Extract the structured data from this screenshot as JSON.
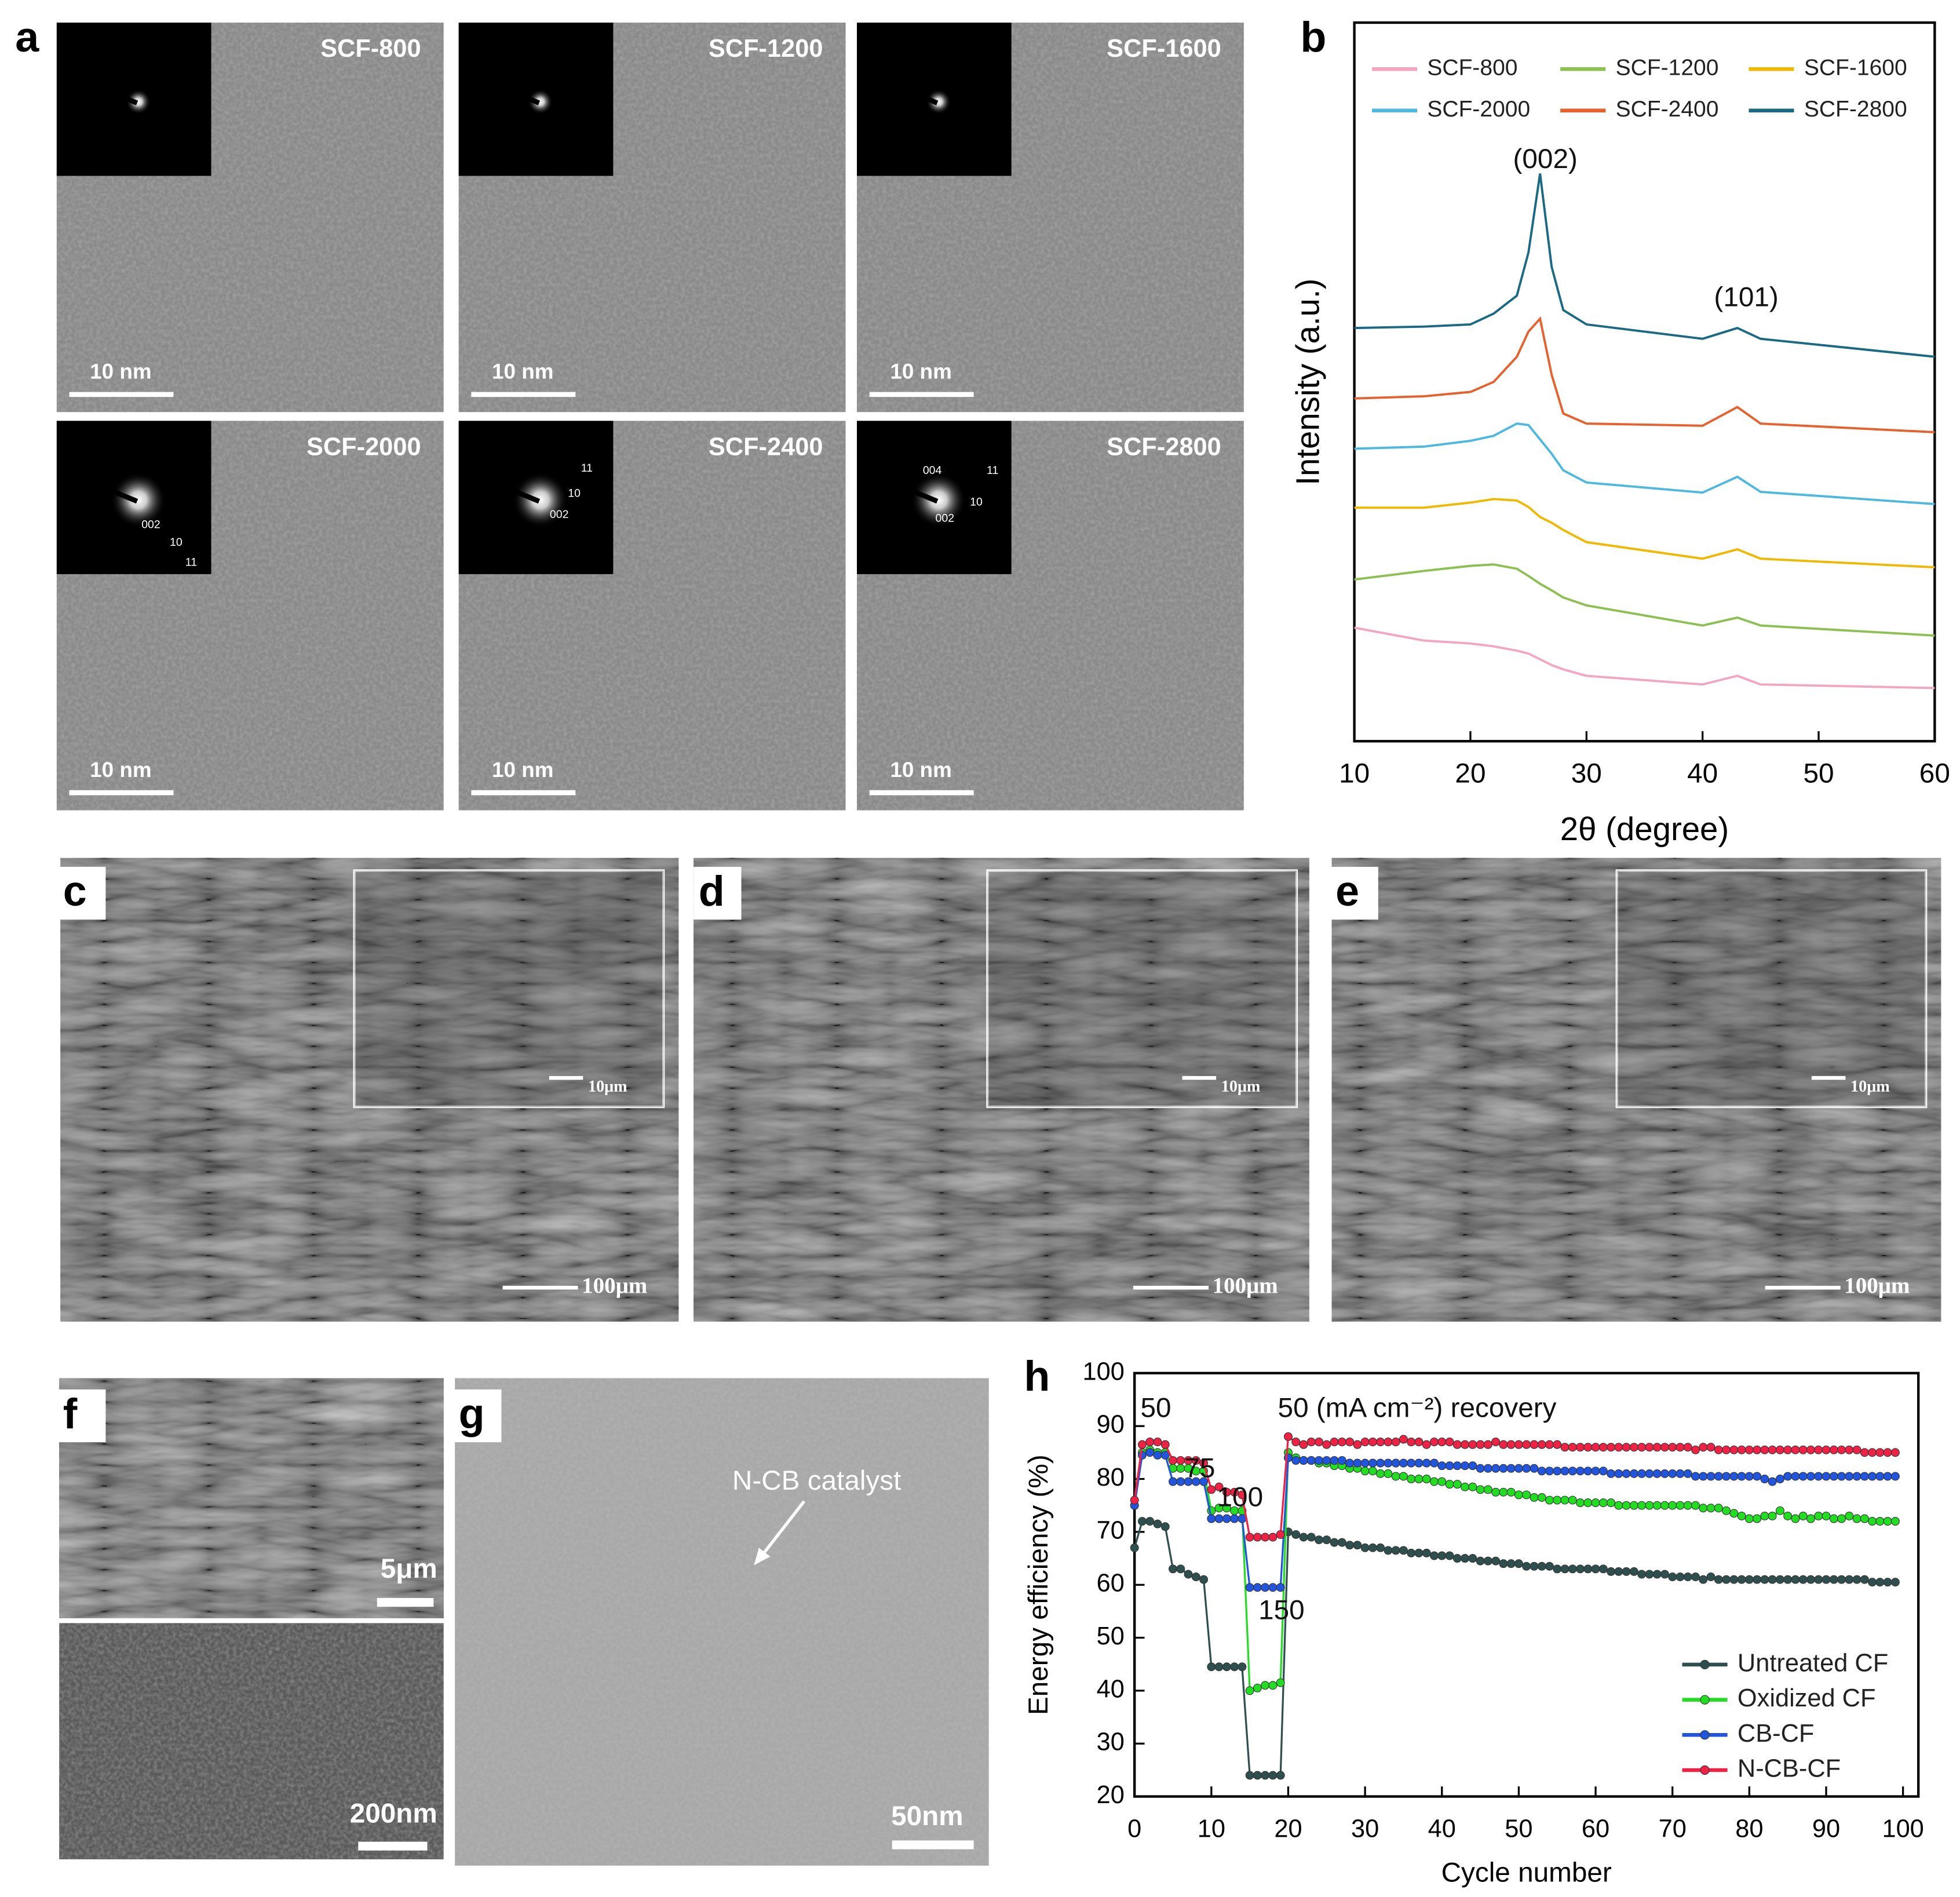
{
  "panel_labels": [
    "a",
    "b",
    "c",
    "d",
    "e",
    "f",
    "g",
    "h"
  ],
  "tem": [
    {
      "label": "SCF-800",
      "scale": "10 nm",
      "saed": []
    },
    {
      "label": "SCF-1200",
      "scale": "10 nm",
      "saed": []
    },
    {
      "label": "SCF-1600",
      "scale": "10 nm",
      "saed": []
    },
    {
      "label": "SCF-2000",
      "scale": "10 nm",
      "saed": [
        "002",
        "10",
        "11"
      ]
    },
    {
      "label": "SCF-2400",
      "scale": "10 nm",
      "saed": [
        "11",
        "10",
        "002"
      ]
    },
    {
      "label": "SCF-2800",
      "scale": "10 nm",
      "saed": [
        "004",
        "11",
        "10",
        "002"
      ]
    }
  ],
  "sem": [
    {
      "scale": "100μm",
      "inset_scale": "10μm"
    },
    {
      "scale": "100μm",
      "inset_scale": "10μm"
    },
    {
      "scale": "100μm",
      "inset_scale": "10μm"
    }
  ],
  "f": {
    "top_scale": "5μm",
    "bottom_scale": "200nm"
  },
  "g": {
    "annotation": "N-CB catalyst",
    "scale": "50nm"
  },
  "chart_data": [
    {
      "type": "line",
      "xlabel": "2θ (degree)",
      "ylabel": "Intensity (a.u.)",
      "annotations": [
        "(002)",
        "(101)"
      ],
      "legend": "top",
      "x": [
        10,
        16,
        20,
        22,
        24,
        25,
        26,
        27,
        28,
        30,
        40,
        43,
        45,
        60
      ],
      "xlim": [
        10,
        60
      ],
      "xticks": [
        10,
        20,
        30,
        40,
        50,
        60
      ],
      "ylim": [
        0,
        100
      ],
      "series": [
        {
          "name": "SCF-800",
          "color": "#f4a6c0",
          "values": [
            15.8,
            14,
            13.6,
            13.2,
            12.6,
            12.2,
            11.4,
            10.6,
            10,
            9.1,
            7.9,
            9.1,
            7.9,
            7.4
          ]
        },
        {
          "name": "SCF-1200",
          "color": "#8cc152",
          "values": [
            22.5,
            23.7,
            24.4,
            24.6,
            24,
            23,
            21.9,
            21,
            20,
            18.9,
            16.1,
            17.2,
            16.1,
            14.7
          ]
        },
        {
          "name": "SCF-1600",
          "color": "#f0b800",
          "values": [
            32.5,
            32.5,
            33.2,
            33.7,
            33.5,
            32.6,
            31.2,
            30.4,
            29.4,
            27.7,
            25.4,
            26.7,
            25.4,
            24.2
          ]
        },
        {
          "name": "SCF-2000",
          "color": "#4db8e0",
          "values": [
            40.7,
            41,
            41.8,
            42.5,
            44.2,
            44,
            42,
            40,
            37.7,
            36,
            34.6,
            36.8,
            34.7,
            33
          ]
        },
        {
          "name": "SCF-2400",
          "color": "#e8602c",
          "values": [
            47.7,
            48,
            48.6,
            50,
            53.5,
            57,
            58.8,
            51,
            45.6,
            44.2,
            43.9,
            46.5,
            44.2,
            43
          ]
        },
        {
          "name": "SCF-2800",
          "color": "#1a6a85",
          "values": [
            57.5,
            57.7,
            58,
            59.5,
            62,
            68,
            79,
            66,
            60,
            58,
            56,
            57.5,
            56,
            53.5
          ]
        }
      ]
    },
    {
      "type": "line",
      "xlabel": "Cycle number",
      "ylabel": "Energy efficiency (%)",
      "annotations": [
        "50",
        "75",
        "100",
        "150",
        "50 (mA cm⁻²) recovery"
      ],
      "legend": "lower right",
      "marker": true,
      "x": [
        0,
        1,
        2,
        3,
        4,
        5,
        6,
        7,
        8,
        9,
        10,
        11,
        12,
        13,
        14,
        15,
        16,
        17,
        18,
        19,
        20,
        21,
        22,
        23,
        24,
        25,
        26,
        27,
        28,
        29,
        30,
        31,
        32,
        33,
        34,
        35,
        36,
        37,
        38,
        39,
        40,
        41,
        42,
        43,
        44,
        45,
        46,
        47,
        48,
        49,
        50,
        51,
        52,
        53,
        54,
        55,
        56,
        57,
        58,
        59,
        60,
        61,
        62,
        63,
        64,
        65,
        66,
        67,
        68,
        69,
        70,
        71,
        72,
        73,
        74,
        75,
        76,
        77,
        78,
        79,
        80,
        81,
        82,
        83,
        84,
        85,
        86,
        87,
        88,
        89,
        90,
        91,
        92,
        93,
        94,
        95,
        96,
        97,
        98,
        99
      ],
      "xlim": [
        0,
        102
      ],
      "xticks": [
        0,
        10,
        20,
        30,
        40,
        50,
        60,
        70,
        80,
        90,
        100
      ],
      "ylim": [
        20,
        100
      ],
      "yticks": [
        20,
        30,
        40,
        50,
        60,
        70,
        80,
        90,
        100
      ],
      "series": [
        {
          "name": "Untreated CF",
          "color": "#2f4f4f",
          "values": [
            67,
            72,
            72,
            71.5,
            71,
            63,
            63,
            62,
            61.5,
            61,
            44.5,
            44.5,
            44.5,
            44.5,
            44.5,
            24,
            24,
            24,
            24,
            24,
            70,
            69.5,
            69,
            69,
            68.5,
            68.5,
            68,
            68,
            67.5,
            67.5,
            67,
            67,
            67,
            66.5,
            66.5,
            66.5,
            66,
            66,
            66,
            65.5,
            65.5,
            65.5,
            65,
            65,
            65,
            64.5,
            64.5,
            64.5,
            64,
            64,
            64,
            63.5,
            63.5,
            63.5,
            63.5,
            63,
            63,
            63,
            63,
            63,
            63,
            63,
            62.5,
            62.5,
            62.5,
            62.5,
            62,
            62,
            62,
            62,
            61.5,
            61.5,
            61.5,
            61.5,
            61,
            61.5,
            61,
            61,
            61,
            61,
            61,
            61,
            61,
            61,
            61,
            61,
            61,
            61,
            61,
            61,
            61,
            61,
            61,
            61,
            61,
            61,
            60.5,
            60.5,
            60.5,
            60.5
          ]
        },
        {
          "name": "Oxidized CF",
          "color": "#22dd22",
          "values": [
            75,
            85,
            85.5,
            85,
            85,
            82,
            82,
            82,
            81.5,
            81.5,
            74,
            74.5,
            74.5,
            74,
            74,
            40,
            40.5,
            41,
            41,
            41.5,
            85,
            84,
            83.5,
            83.5,
            83,
            83,
            82.5,
            82.5,
            82,
            82,
            81.5,
            81.5,
            81,
            81,
            80.5,
            80.5,
            80,
            80,
            80,
            79.5,
            79.5,
            79,
            79,
            78.5,
            78.5,
            78,
            78,
            77.5,
            77.5,
            77.5,
            77,
            77,
            76.5,
            76.5,
            76,
            76,
            76,
            76,
            75.5,
            75.5,
            75.5,
            75.5,
            75.5,
            75,
            75,
            75,
            75,
            75,
            75,
            75,
            75,
            75,
            75,
            75,
            74.5,
            74.5,
            74.5,
            74,
            73.5,
            73,
            72.5,
            72.5,
            73,
            73,
            74,
            73,
            72.5,
            73,
            72.5,
            73,
            73,
            72.5,
            72.5,
            73,
            72.5,
            72.5,
            72,
            72,
            72,
            72
          ]
        },
        {
          "name": "CB-CF",
          "color": "#2255dd",
          "values": [
            75,
            84.5,
            85,
            84.5,
            84.5,
            79.5,
            79.5,
            79.5,
            79.5,
            79.5,
            72.5,
            72.5,
            72.5,
            72.5,
            72.5,
            59.5,
            59.5,
            59.5,
            59.5,
            59.5,
            84,
            83.5,
            83.5,
            83.5,
            83.5,
            83.5,
            83.5,
            83.5,
            83,
            83,
            83,
            83,
            83,
            83,
            83,
            83,
            83,
            83,
            83,
            83,
            82.5,
            82.5,
            82.5,
            82.5,
            82.5,
            82,
            82,
            82,
            82,
            82,
            82,
            82,
            82,
            81.5,
            81.5,
            81.5,
            81.5,
            81.5,
            81.5,
            81.5,
            81.5,
            81.5,
            81,
            81,
            81,
            81,
            81,
            81,
            81,
            81,
            81,
            81,
            81,
            80.5,
            80.5,
            80.5,
            80.5,
            80.5,
            80.5,
            80.5,
            80.5,
            80.5,
            80,
            79.5,
            80,
            80.5,
            80.5,
            80.5,
            80.5,
            80.5,
            80.5,
            80.5,
            80.5,
            80.5,
            80.5,
            80.5,
            80.5,
            80.5,
            80.5,
            80.5
          ]
        },
        {
          "name": "N-CB-CF",
          "color": "#ee2244",
          "values": [
            76,
            86.5,
            87,
            87,
            86.5,
            83.5,
            83.5,
            83.5,
            83.5,
            83,
            78,
            78.5,
            77.5,
            77.5,
            77,
            69,
            69,
            69,
            69,
            69.5,
            88,
            87,
            86.5,
            87,
            87,
            86.5,
            87,
            87,
            87,
            86.5,
            87,
            87,
            87,
            87,
            87,
            87.5,
            87,
            87,
            86.5,
            87,
            87,
            87,
            86.5,
            86.5,
            86.5,
            86.5,
            86.5,
            87,
            86.5,
            86.5,
            86.5,
            86.5,
            86.5,
            86.5,
            86.5,
            86.5,
            86,
            86,
            86,
            86,
            86,
            86,
            86,
            86,
            86,
            86,
            86,
            86,
            86,
            86,
            86,
            86,
            86,
            85.5,
            86,
            86,
            85.5,
            85.5,
            85.5,
            85.5,
            85.5,
            85.5,
            85.5,
            85.5,
            85.5,
            85.5,
            85.5,
            85.5,
            85.5,
            85.5,
            85.5,
            85.5,
            85.5,
            85.5,
            85.5,
            85,
            85,
            85,
            85,
            85
          ]
        }
      ]
    }
  ]
}
